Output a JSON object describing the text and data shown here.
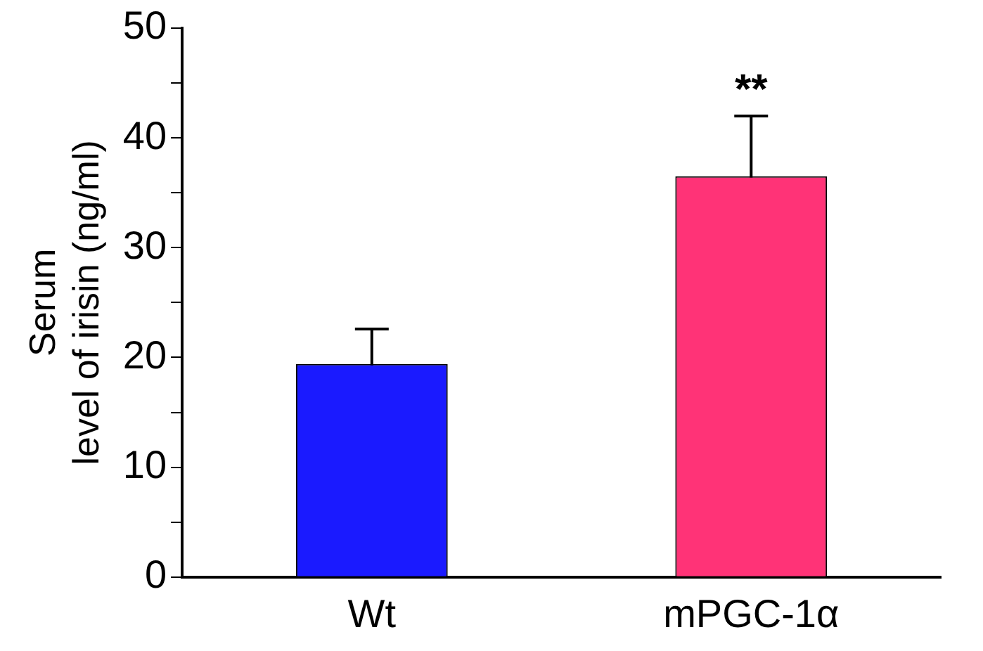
{
  "chart_data": {
    "type": "bar",
    "ylabel": "Serum\nlevel of irisin (ng/ml)",
    "categories": [
      "Wt",
      "mPGC-1α"
    ],
    "values": [
      19.4,
      36.5
    ],
    "colors": [
      "#1a1aff",
      "#ff3377"
    ],
    "errors": [
      3.2,
      5.5
    ],
    "ylim": [
      0,
      50
    ],
    "yticks": [
      0,
      {
        "value": 5,
        "label": null
      },
      10,
      {
        "value": 15,
        "label": null
      },
      20,
      {
        "value": 25,
        "label": null
      },
      30,
      {
        "value": 35,
        "label": null
      },
      40,
      {
        "value": 45,
        "label": null
      },
      50
    ],
    "annotations": [
      "**"
    ],
    "grid": false,
    "legend": false
  }
}
